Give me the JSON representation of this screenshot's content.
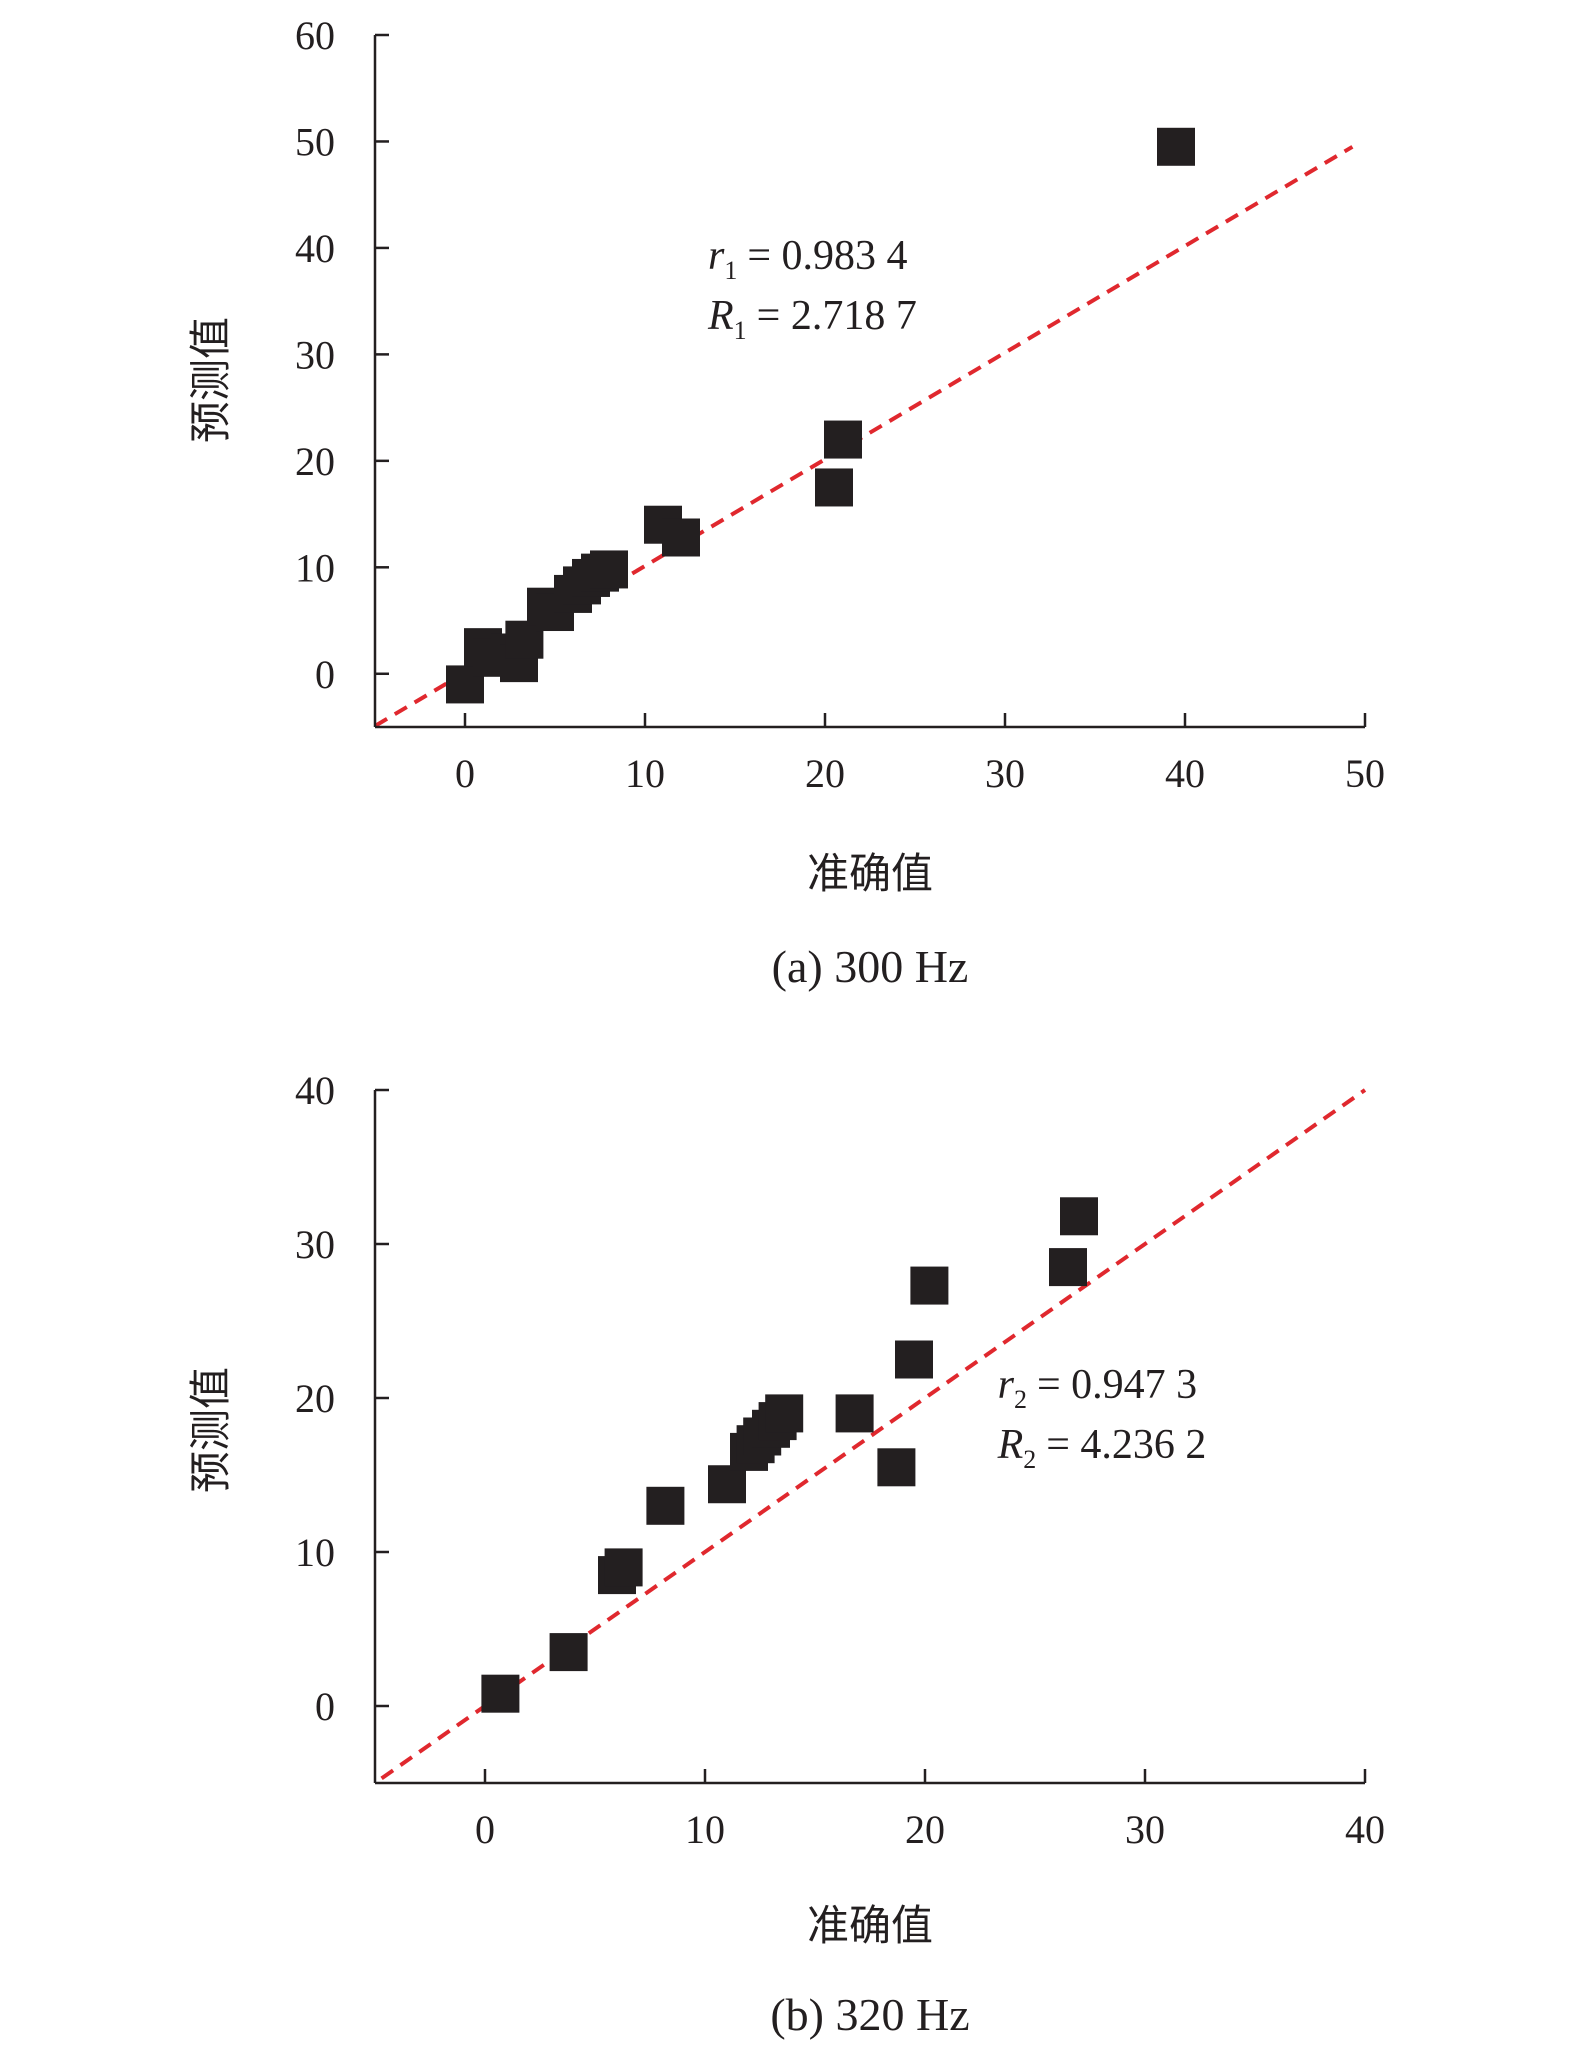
{
  "colors": {
    "marker": "#231f20",
    "fit_line": "#e0282e",
    "axis": "#231f20"
  },
  "chart_data": [
    {
      "type": "scatter",
      "caption": "(a) 300 Hz",
      "xlabel": "准确值",
      "ylabel": "预测值",
      "xlim": [
        -5,
        50
      ],
      "ylim": [
        -5,
        60
      ],
      "xticks": [
        0,
        10,
        20,
        30,
        40,
        50
      ],
      "yticks": [
        0,
        10,
        20,
        30,
        40,
        50,
        60
      ],
      "marker": "square",
      "fit_line": {
        "style": "dashed",
        "from": [
          -5,
          -4.9
        ],
        "to": [
          49.3,
          49.5
        ]
      },
      "annotation": {
        "r_symbol": "r",
        "r_sub": "1",
        "r_value": "= 0.983 4",
        "R_symbol": "R",
        "R_sub": "1",
        "R_value": "= 2.718 7",
        "pos": [
          13.5,
          38
        ]
      },
      "points": [
        {
          "x": 0.0,
          "y": -1.0
        },
        {
          "x": 1.0,
          "y": 2.5
        },
        {
          "x": 1.5,
          "y": 1.5
        },
        {
          "x": 2.5,
          "y": 2.0
        },
        {
          "x": 3.0,
          "y": 1.0
        },
        {
          "x": 3.3,
          "y": 3.2
        },
        {
          "x": 4.5,
          "y": 6.3
        },
        {
          "x": 5.0,
          "y": 5.8
        },
        {
          "x": 6.0,
          "y": 7.5
        },
        {
          "x": 6.5,
          "y": 8.3
        },
        {
          "x": 7.0,
          "y": 9.0
        },
        {
          "x": 7.5,
          "y": 9.5
        },
        {
          "x": 8.0,
          "y": 9.8
        },
        {
          "x": 11.0,
          "y": 14.0
        },
        {
          "x": 12.0,
          "y": 12.8
        },
        {
          "x": 20.5,
          "y": 17.5
        },
        {
          "x": 21.0,
          "y": 22.0
        },
        {
          "x": 39.5,
          "y": 49.5
        }
      ]
    },
    {
      "type": "scatter",
      "caption": "(b) 320 Hz",
      "xlabel": "准确值",
      "ylabel": "预测值",
      "xlim": [
        -5,
        40
      ],
      "ylim": [
        -5,
        40
      ],
      "xticks": [
        0,
        10,
        20,
        30,
        40
      ],
      "yticks": [
        0,
        10,
        20,
        30,
        40
      ],
      "marker": "square",
      "fit_line": {
        "style": "dashed",
        "from": [
          -4.7,
          -4.7
        ],
        "to": [
          40,
          40
        ]
      },
      "annotation": {
        "r_symbol": "r",
        "r_sub": "2",
        "r_value": "= 0.947 3",
        "R_symbol": "R",
        "R_sub": "2",
        "R_value": "= 4.236 2",
        "pos": [
          23.3,
          20
        ]
      },
      "points": [
        {
          "x": 0.7,
          "y": 0.8
        },
        {
          "x": 3.8,
          "y": 3.5
        },
        {
          "x": 6.0,
          "y": 8.5
        },
        {
          "x": 6.3,
          "y": 9.0
        },
        {
          "x": 8.2,
          "y": 13.0
        },
        {
          "x": 11.0,
          "y": 14.4
        },
        {
          "x": 12.0,
          "y": 16.5
        },
        {
          "x": 12.3,
          "y": 17.0
        },
        {
          "x": 12.6,
          "y": 17.5
        },
        {
          "x": 13.0,
          "y": 18.0
        },
        {
          "x": 13.3,
          "y": 18.5
        },
        {
          "x": 13.6,
          "y": 19.0
        },
        {
          "x": 16.8,
          "y": 19.0
        },
        {
          "x": 18.7,
          "y": 15.5
        },
        {
          "x": 19.5,
          "y": 22.5
        },
        {
          "x": 20.2,
          "y": 27.3
        },
        {
          "x": 26.5,
          "y": 28.5
        },
        {
          "x": 27.0,
          "y": 31.8
        }
      ]
    }
  ]
}
